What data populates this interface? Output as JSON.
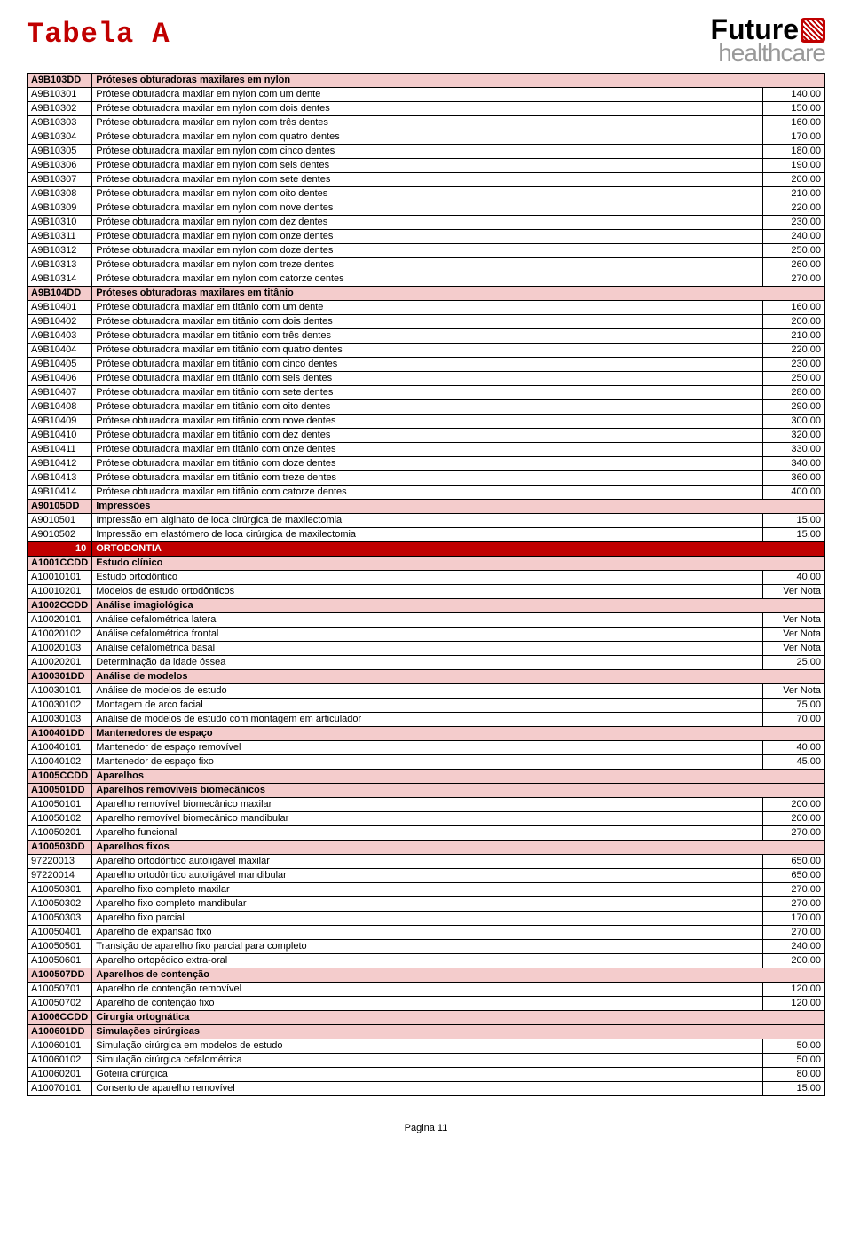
{
  "title": "Tabela A",
  "logo": {
    "top": "Future",
    "bottom": "healthcare"
  },
  "footer": "Pagina 11",
  "rows": [
    {
      "type": "pink",
      "code": "A9B103DD",
      "desc": "Próteses obturadoras maxilares em nylon",
      "price": ""
    },
    {
      "type": "data",
      "code": "A9B10301",
      "desc": "Prótese obturadora maxilar em nylon com um dente",
      "price": "140,00"
    },
    {
      "type": "data",
      "code": "A9B10302",
      "desc": "Prótese obturadora maxilar em nylon com dois dentes",
      "price": "150,00"
    },
    {
      "type": "data",
      "code": "A9B10303",
      "desc": "Prótese obturadora maxilar em nylon com três dentes",
      "price": "160,00"
    },
    {
      "type": "data",
      "code": "A9B10304",
      "desc": "Prótese obturadora maxilar em nylon com quatro dentes",
      "price": "170,00"
    },
    {
      "type": "data",
      "code": "A9B10305",
      "desc": "Prótese obturadora maxilar em nylon com cinco dentes",
      "price": "180,00"
    },
    {
      "type": "data",
      "code": "A9B10306",
      "desc": "Prótese obturadora maxilar em nylon com seis dentes",
      "price": "190,00"
    },
    {
      "type": "data",
      "code": "A9B10307",
      "desc": "Prótese obturadora maxilar em nylon com sete dentes",
      "price": "200,00"
    },
    {
      "type": "data",
      "code": "A9B10308",
      "desc": "Prótese obturadora maxilar em nylon com oito dentes",
      "price": "210,00"
    },
    {
      "type": "data",
      "code": "A9B10309",
      "desc": "Prótese obturadora maxilar em nylon com nove dentes",
      "price": "220,00"
    },
    {
      "type": "data",
      "code": "A9B10310",
      "desc": "Prótese obturadora maxilar em nylon com dez dentes",
      "price": "230,00"
    },
    {
      "type": "data",
      "code": "A9B10311",
      "desc": "Prótese obturadora maxilar em nylon com onze dentes",
      "price": "240,00"
    },
    {
      "type": "data",
      "code": "A9B10312",
      "desc": "Prótese obturadora maxilar em nylon com doze dentes",
      "price": "250,00"
    },
    {
      "type": "data",
      "code": "A9B10313",
      "desc": "Prótese obturadora maxilar em nylon com treze dentes",
      "price": "260,00"
    },
    {
      "type": "data",
      "code": "A9B10314",
      "desc": "Prótese obturadora maxilar em nylon com catorze dentes",
      "price": "270,00"
    },
    {
      "type": "pink",
      "code": "A9B104DD",
      "desc": "Próteses obturadoras maxilares em titânio",
      "price": ""
    },
    {
      "type": "data",
      "code": "A9B10401",
      "desc": "Prótese obturadora maxilar em titânio com um dente",
      "price": "160,00"
    },
    {
      "type": "data",
      "code": "A9B10402",
      "desc": "Prótese obturadora maxilar em titânio com dois dentes",
      "price": "200,00"
    },
    {
      "type": "data",
      "code": "A9B10403",
      "desc": "Prótese obturadora maxilar em titânio com três dentes",
      "price": "210,00"
    },
    {
      "type": "data",
      "code": "A9B10404",
      "desc": "Prótese obturadora maxilar em titânio com quatro dentes",
      "price": "220,00"
    },
    {
      "type": "data",
      "code": "A9B10405",
      "desc": "Prótese obturadora maxilar em titânio com cinco dentes",
      "price": "230,00"
    },
    {
      "type": "data",
      "code": "A9B10406",
      "desc": "Prótese obturadora maxilar em titânio com seis dentes",
      "price": "250,00"
    },
    {
      "type": "data",
      "code": "A9B10407",
      "desc": "Prótese obturadora maxilar em titânio com sete dentes",
      "price": "280,00"
    },
    {
      "type": "data",
      "code": "A9B10408",
      "desc": "Prótese obturadora maxilar em titânio com oito dentes",
      "price": "290,00"
    },
    {
      "type": "data",
      "code": "A9B10409",
      "desc": "Prótese obturadora maxilar em titânio com nove dentes",
      "price": "300,00"
    },
    {
      "type": "data",
      "code": "A9B10410",
      "desc": "Prótese obturadora maxilar em titânio com dez dentes",
      "price": "320,00"
    },
    {
      "type": "data",
      "code": "A9B10411",
      "desc": "Prótese obturadora maxilar em titânio com onze dentes",
      "price": "330,00"
    },
    {
      "type": "data",
      "code": "A9B10412",
      "desc": "Prótese obturadora maxilar em titânio com doze dentes",
      "price": "340,00"
    },
    {
      "type": "data",
      "code": "A9B10413",
      "desc": "Prótese obturadora maxilar em titânio com treze dentes",
      "price": "360,00"
    },
    {
      "type": "data",
      "code": "A9B10414",
      "desc": "Prótese obturadora maxilar em titânio com catorze dentes",
      "price": "400,00"
    },
    {
      "type": "pink",
      "code": "A90105DD",
      "desc": "Impressões",
      "price": ""
    },
    {
      "type": "data",
      "code": "A9010501",
      "desc": "Impressão em alginato de loca cirúrgica de maxilectomia",
      "price": "15,00"
    },
    {
      "type": "data",
      "code": "A9010502",
      "desc": "Impressão em elastómero de loca cirúrgica de maxilectomia",
      "price": "15,00"
    },
    {
      "type": "red",
      "code": "10",
      "desc": "ORTODONTIA",
      "price": ""
    },
    {
      "type": "pink",
      "code": "A1001CCDD",
      "desc": "Estudo clínico",
      "price": ""
    },
    {
      "type": "data",
      "code": "A10010101",
      "desc": "Estudo ortodôntico",
      "price": "40,00"
    },
    {
      "type": "data",
      "code": "A10010201",
      "desc": "Modelos de estudo ortodônticos",
      "price": "Ver Nota"
    },
    {
      "type": "pink",
      "code": "A1002CCDD",
      "desc": "Análise imagiológica",
      "price": ""
    },
    {
      "type": "data",
      "code": "A10020101",
      "desc": "Análise cefalométrica latera",
      "price": "Ver Nota"
    },
    {
      "type": "data",
      "code": "A10020102",
      "desc": "Análise cefalométrica frontal",
      "price": "Ver Nota"
    },
    {
      "type": "data",
      "code": "A10020103",
      "desc": "Análise cefalométrica basal",
      "price": "Ver Nota"
    },
    {
      "type": "data",
      "code": "A10020201",
      "desc": "Determinação da idade óssea",
      "price": "25,00"
    },
    {
      "type": "pink",
      "code": "A100301DD",
      "desc": "Análise de modelos",
      "price": ""
    },
    {
      "type": "data",
      "code": "A10030101",
      "desc": "Análise de modelos de estudo",
      "price": "Ver Nota"
    },
    {
      "type": "data",
      "code": "A10030102",
      "desc": "Montagem de arco facial",
      "price": "75,00"
    },
    {
      "type": "data",
      "code": "A10030103",
      "desc": "Análise de modelos de estudo com montagem em articulador",
      "price": "70,00"
    },
    {
      "type": "pink",
      "code": "A100401DD",
      "desc": "Mantenedores de espaço",
      "price": ""
    },
    {
      "type": "data",
      "code": "A10040101",
      "desc": "Mantenedor de espaço removível",
      "price": "40,00"
    },
    {
      "type": "data",
      "code": "A10040102",
      "desc": "Mantenedor de espaço fixo",
      "price": "45,00"
    },
    {
      "type": "pink",
      "code": "A1005CCDD",
      "desc": "Aparelhos",
      "price": ""
    },
    {
      "type": "pink",
      "code": "A100501DD",
      "desc": "Aparelhos removíveis biomecânicos",
      "price": ""
    },
    {
      "type": "data",
      "code": "A10050101",
      "desc": "Aparelho removível biomecânico maxilar",
      "price": "200,00"
    },
    {
      "type": "data",
      "code": "A10050102",
      "desc": "Aparelho removível biomecânico mandibular",
      "price": "200,00"
    },
    {
      "type": "data",
      "code": "A10050201",
      "desc": "Aparelho funcional",
      "price": "270,00"
    },
    {
      "type": "pink",
      "code": "A100503DD",
      "desc": "Aparelhos fixos",
      "price": ""
    },
    {
      "type": "data",
      "code": "97220013",
      "desc": "Aparelho ortodôntico autoligável maxilar",
      "price": "650,00"
    },
    {
      "type": "data",
      "code": "97220014",
      "desc": "Aparelho ortodôntico autoligável mandibular",
      "price": "650,00"
    },
    {
      "type": "data",
      "code": "A10050301",
      "desc": "Aparelho fixo completo maxilar",
      "price": "270,00"
    },
    {
      "type": "data",
      "code": "A10050302",
      "desc": "Aparelho fixo completo mandibular",
      "price": "270,00"
    },
    {
      "type": "data",
      "code": "A10050303",
      "desc": "Aparelho fixo parcial",
      "price": "170,00"
    },
    {
      "type": "data",
      "code": "A10050401",
      "desc": "Aparelho de expansão fixo",
      "price": "270,00"
    },
    {
      "type": "data",
      "code": "A10050501",
      "desc": "Transição de aparelho fixo parcial para completo",
      "price": "240,00"
    },
    {
      "type": "data",
      "code": "A10050601",
      "desc": "Aparelho ortopédico extra-oral",
      "price": "200,00"
    },
    {
      "type": "pink",
      "code": "A100507DD",
      "desc": "Aparelhos de contenção",
      "price": ""
    },
    {
      "type": "data",
      "code": "A10050701",
      "desc": "Aparelho de contenção removível",
      "price": "120,00"
    },
    {
      "type": "data",
      "code": "A10050702",
      "desc": "Aparelho de contenção fixo",
      "price": "120,00"
    },
    {
      "type": "pink",
      "code": "A1006CCDD",
      "desc": "Cirurgia ortognática",
      "price": ""
    },
    {
      "type": "pink",
      "code": "A100601DD",
      "desc": "Simulações cirúrgicas",
      "price": ""
    },
    {
      "type": "data",
      "code": "A10060101",
      "desc": "Simulação cirúrgica em modelos de estudo",
      "price": "50,00"
    },
    {
      "type": "data",
      "code": "A10060102",
      "desc": "Simulação cirúrgica cefalométrica",
      "price": "50,00"
    },
    {
      "type": "data",
      "code": "A10060201",
      "desc": "Goteira cirúrgica",
      "price": "80,00"
    },
    {
      "type": "data",
      "code": "A10070101",
      "desc": "Conserto de aparelho removível",
      "price": "15,00"
    }
  ]
}
